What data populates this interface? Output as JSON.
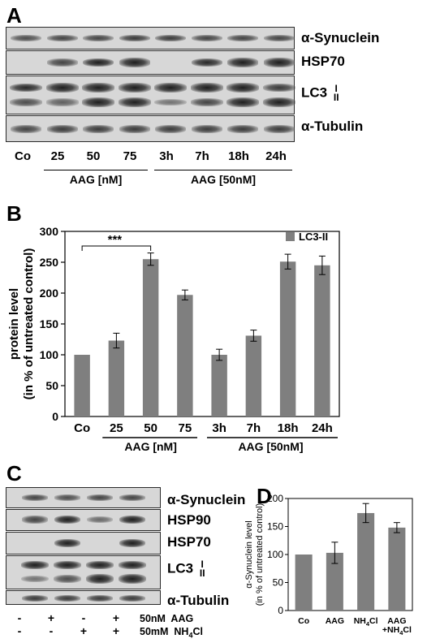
{
  "panel_letters": {
    "a": "A",
    "b": "B",
    "c": "C",
    "d": "D"
  },
  "panel_a": {
    "rows": [
      {
        "label": "α-Synuclein",
        "bands": [
          0.5,
          0.55,
          0.55,
          0.6,
          0.6,
          0.55,
          0.55,
          0.55
        ]
      },
      {
        "label": "HSP70",
        "bands": [
          0,
          0.55,
          0.75,
          0.85,
          0,
          0.7,
          0.8,
          0.8
        ]
      },
      {
        "label_main": "LC3",
        "label_top": "I",
        "label_bottom": "II"
      },
      {
        "label": "α-Tubulin",
        "bands": [
          0.55,
          0.6,
          0.6,
          0.6,
          0.6,
          0.6,
          0.6,
          0.6
        ]
      }
    ],
    "lc3_upper": [
      0.7,
      0.85,
      0.9,
      0.9,
      0.85,
      0.85,
      0.85,
      0.6
    ],
    "lc3_lower": [
      0.5,
      0.4,
      0.85,
      0.85,
      0.3,
      0.55,
      0.9,
      0.9
    ],
    "lanes": [
      "Co",
      "25",
      "50",
      "75",
      "3h",
      "7h",
      "18h",
      "24h"
    ],
    "group1": "AAG [nM]",
    "group2": "AAG [50nM]"
  },
  "chart_data": [
    {
      "type": "bar",
      "ylabel": "protein level\n(in % of untreated control)",
      "categories": [
        "Co",
        "25",
        "50",
        "75",
        "3h",
        "7h",
        "18h",
        "24h"
      ],
      "series": [
        {
          "name": "LC3-II",
          "values": [
            100,
            123,
            255,
            197,
            100,
            131,
            251,
            245
          ]
        }
      ],
      "errors": [
        0,
        12,
        10,
        8,
        9,
        9,
        12,
        15
      ],
      "ylim": [
        0,
        300
      ],
      "yticks": [
        0,
        50,
        100,
        150,
        200,
        250,
        300
      ],
      "legend": "top-right",
      "significance": "***",
      "group_labels": [
        "AAG [nM]",
        "AAG [50nM]"
      ],
      "color": "#7f7f7f"
    },
    {
      "type": "bar",
      "ylabel": "α-Synuclein level\n(in % of untreated control)",
      "categories": [
        "Co",
        "AAG",
        "NH4Cl",
        "AAG\n+NH4Cl"
      ],
      "values": [
        100,
        103,
        174,
        148
      ],
      "errors": [
        0,
        19,
        17,
        9
      ],
      "ylim": [
        0,
        200
      ],
      "yticks": [
        0,
        50,
        100,
        150,
        200
      ],
      "color": "#7f7f7f"
    }
  ],
  "panel_c": {
    "rows": [
      {
        "label": "α-Synuclein",
        "bands": [
          0.55,
          0.5,
          0.55,
          0.55
        ]
      },
      {
        "label": "HSP90",
        "bands": [
          0.55,
          0.9,
          0.35,
          0.85
        ]
      },
      {
        "label": "HSP70",
        "bands": [
          0,
          0.85,
          0,
          0.85
        ]
      },
      {
        "label_main": "LC3",
        "label_top": "I",
        "label_bottom": "II"
      },
      {
        "label": "α-Tubulin",
        "bands": [
          0.6,
          0.6,
          0.6,
          0.6
        ]
      }
    ],
    "lc3_upper": [
      0.85,
      0.9,
      0.9,
      0.9
    ],
    "lc3_lower": [
      0.3,
      0.5,
      0.9,
      1.0
    ],
    "aag_signs": [
      "-",
      "+",
      "-",
      "+"
    ],
    "nh4_signs": [
      "-",
      "-",
      "+",
      "+"
    ],
    "aag_label": "50nM  AAG",
    "nh4_label_prefix": "50mM  NH",
    "nh4_label_sub": "4",
    "nh4_label_suffix": "Cl"
  }
}
